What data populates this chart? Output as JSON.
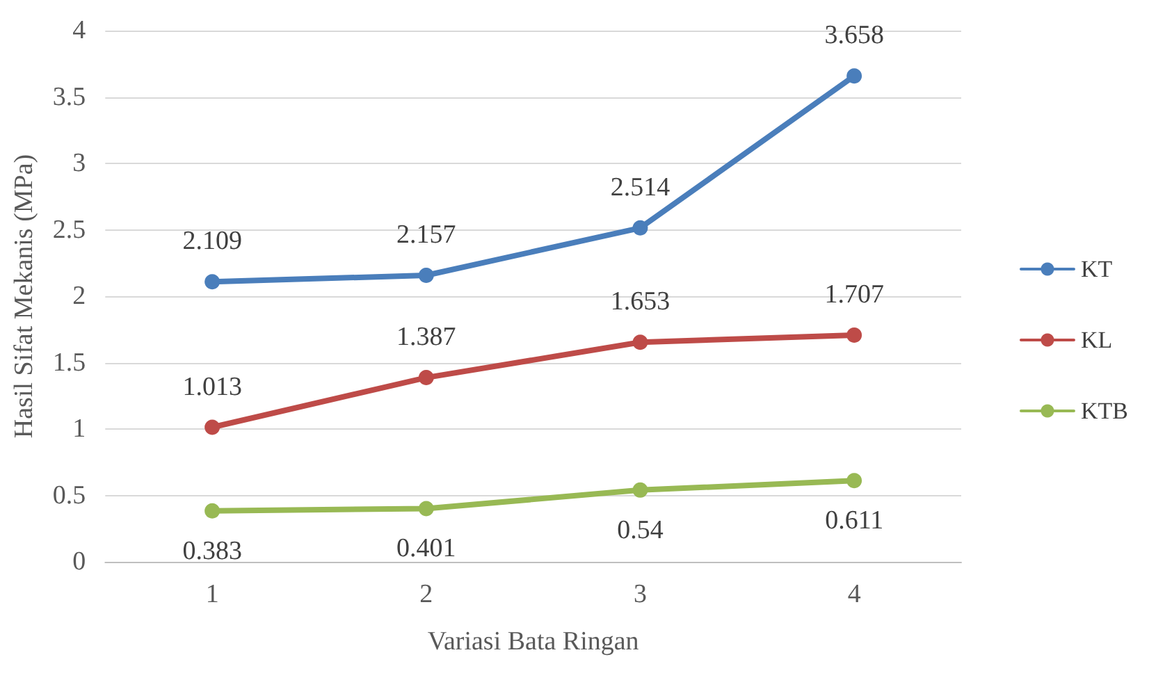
{
  "chart_data": {
    "type": "line",
    "xlabel": "Variasi Bata Ringan",
    "ylabel": "Hasil Sifat Mekanis (MPa)",
    "categories": [
      "1",
      "2",
      "3",
      "4"
    ],
    "series": [
      {
        "name": "KT",
        "color": "#4a7ebb",
        "values": [
          2.109,
          2.157,
          2.514,
          3.658
        ]
      },
      {
        "name": "KL",
        "color": "#be4b48",
        "values": [
          1.013,
          1.387,
          1.653,
          1.707
        ]
      },
      {
        "name": "KTB",
        "color": "#98b954",
        "values": [
          0.383,
          0.401,
          0.54,
          0.611
        ]
      }
    ],
    "ylim": [
      0,
      4
    ],
    "yticks": [
      0,
      0.5,
      1,
      1.5,
      2,
      2.5,
      3,
      3.5,
      4
    ],
    "grid": "y",
    "legend": "right",
    "marker": "circle",
    "line_style": "solid",
    "data_labels": true
  }
}
